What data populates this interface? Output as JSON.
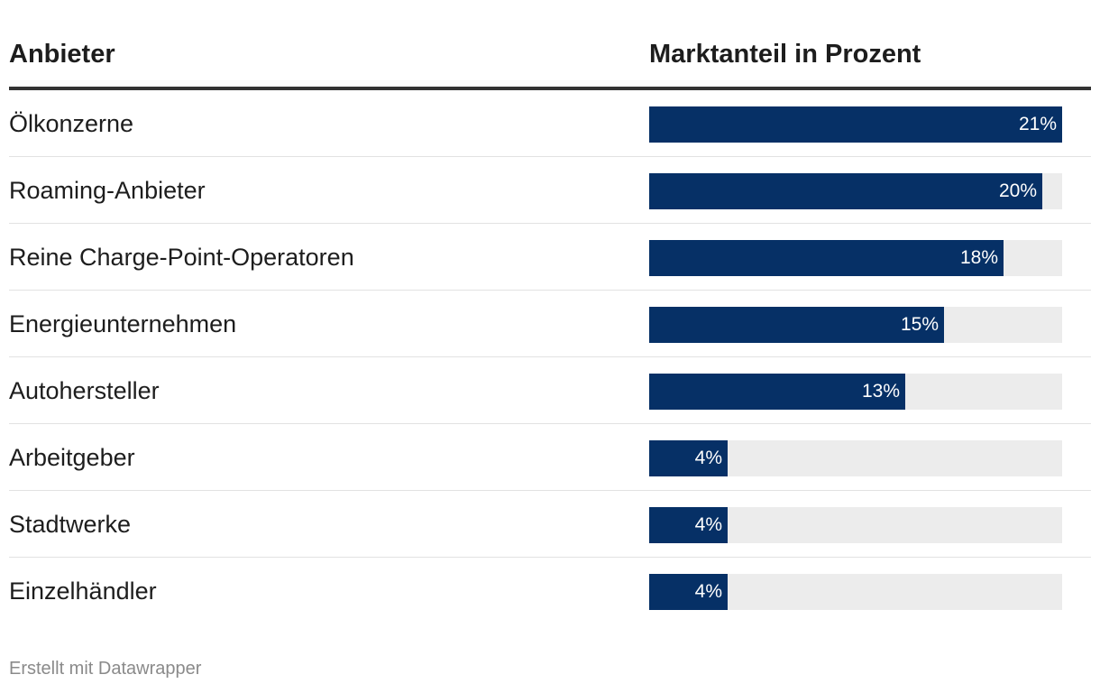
{
  "header": {
    "col_provider": "Anbieter",
    "col_share": "Marktanteil in Prozent"
  },
  "chart_data": {
    "type": "bar",
    "orientation": "horizontal",
    "categories": [
      "Ölkonzerne",
      "Roaming-Anbieter",
      "Reine Charge-Point-Operatoren",
      "Energieunternehmen",
      "Autohersteller",
      "Arbeitgeber",
      "Stadtwerke",
      "Einzelhändler"
    ],
    "values": [
      21,
      20,
      18,
      15,
      13,
      4,
      4,
      4
    ],
    "value_labels": [
      "21%",
      "20%",
      "18%",
      "15%",
      "13%",
      "4%",
      "4%",
      "4%"
    ],
    "xlim": [
      0,
      21
    ],
    "title": "",
    "xlabel": "Marktanteil in Prozent",
    "ylabel": "Anbieter",
    "bar_color": "#063066",
    "track_color": "#ececec"
  },
  "footer": {
    "credit": "Erstellt mit Datawrapper"
  }
}
